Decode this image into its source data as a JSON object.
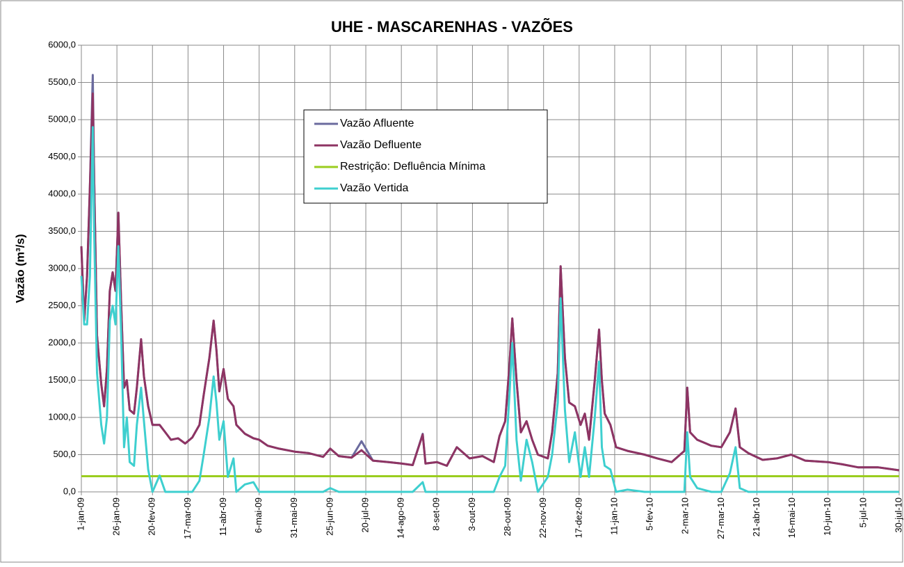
{
  "chart_data": {
    "type": "line",
    "title": "UHE - MASCARENHAS - VAZÕES",
    "y_label": "Vazão (m³/s)",
    "x": [
      "2009-01-01",
      "2009-01-03",
      "2009-01-05",
      "2009-01-07",
      "2009-01-09",
      "2009-01-10",
      "2009-01-12",
      "2009-01-15",
      "2009-01-17",
      "2009-01-19",
      "2009-01-21",
      "2009-01-23",
      "2009-01-25",
      "2009-01-27",
      "2009-01-29",
      "2009-01-31",
      "2009-02-02",
      "2009-02-04",
      "2009-02-07",
      "2009-02-09",
      "2009-02-12",
      "2009-02-14",
      "2009-02-17",
      "2009-02-20",
      "2009-02-25",
      "2009-03-01",
      "2009-03-05",
      "2009-03-10",
      "2009-03-15",
      "2009-03-20",
      "2009-03-25",
      "2009-03-28",
      "2009-04-01",
      "2009-04-04",
      "2009-04-06",
      "2009-04-08",
      "2009-04-11",
      "2009-04-14",
      "2009-04-18",
      "2009-04-20",
      "2009-04-26",
      "2009-05-02",
      "2009-05-06",
      "2009-05-12",
      "2009-05-20",
      "2009-05-31",
      "2009-06-10",
      "2009-06-20",
      "2009-06-25",
      "2009-07-01",
      "2009-07-10",
      "2009-07-17",
      "2009-07-25",
      "2009-08-05",
      "2009-08-14",
      "2009-08-22",
      "2009-08-29",
      "2009-08-31",
      "2009-09-08",
      "2009-09-15",
      "2009-09-22",
      "2009-10-01",
      "2009-10-10",
      "2009-10-18",
      "2009-10-22",
      "2009-10-26",
      "2009-10-29",
      "2009-10-31",
      "2009-11-03",
      "2009-11-06",
      "2009-11-10",
      "2009-11-14",
      "2009-11-18",
      "2009-11-25",
      "2009-11-28",
      "2009-12-02",
      "2009-12-04",
      "2009-12-07",
      "2009-12-10",
      "2009-12-14",
      "2009-12-18",
      "2009-12-21",
      "2009-12-24",
      "2009-12-28",
      "2009-12-31",
      "2010-01-02",
      "2010-01-04",
      "2010-01-08",
      "2010-01-12",
      "2010-01-20",
      "2010-02-01",
      "2010-02-10",
      "2010-02-20",
      "2010-03-01",
      "2010-03-03",
      "2010-03-05",
      "2010-03-10",
      "2010-03-20",
      "2010-03-27",
      "2010-04-02",
      "2010-04-06",
      "2010-04-09",
      "2010-04-15",
      "2010-04-25",
      "2010-05-05",
      "2010-05-15",
      "2010-05-25",
      "2010-06-10",
      "2010-06-20",
      "2010-07-01",
      "2010-07-15",
      "2010-07-30"
    ],
    "series": [
      {
        "name": "Vazão Afluente",
        "color": "#6b6b9e",
        "values": [
          3300,
          2300,
          2900,
          4100,
          5600,
          4200,
          2100,
          1450,
          1150,
          1650,
          2700,
          2950,
          2700,
          3750,
          2500,
          1400,
          1500,
          1100,
          1050,
          1400,
          2050,
          1550,
          1150,
          900,
          900,
          800,
          700,
          720,
          650,
          730,
          900,
          1300,
          1800,
          2300,
          1900,
          1350,
          1650,
          1250,
          1150,
          900,
          780,
          720,
          700,
          620,
          580,
          540,
          520,
          470,
          580,
          480,
          460,
          680,
          420,
          400,
          380,
          360,
          780,
          380,
          400,
          350,
          600,
          450,
          480,
          400,
          750,
          950,
          1700,
          2330,
          1500,
          800,
          950,
          700,
          500,
          450,
          800,
          1600,
          3030,
          1800,
          1200,
          1150,
          900,
          1050,
          700,
          1500,
          2180,
          1500,
          1050,
          900,
          600,
          550,
          500,
          450,
          400,
          550,
          1400,
          800,
          700,
          620,
          600,
          800,
          1120,
          600,
          520,
          430,
          450,
          500,
          420,
          400,
          370,
          330,
          330,
          290
        ]
      },
      {
        "name": "Vazão Defluente",
        "color": "#8e3463",
        "values": [
          3300,
          2300,
          2900,
          4100,
          5350,
          4200,
          2100,
          1450,
          1150,
          1650,
          2700,
          2950,
          2700,
          3750,
          2500,
          1400,
          1500,
          1100,
          1050,
          1400,
          2050,
          1550,
          1150,
          900,
          900,
          800,
          700,
          720,
          650,
          730,
          900,
          1300,
          1800,
          2300,
          1900,
          1350,
          1650,
          1250,
          1150,
          900,
          780,
          720,
          700,
          620,
          580,
          540,
          520,
          470,
          580,
          480,
          460,
          560,
          420,
          400,
          380,
          360,
          770,
          380,
          400,
          350,
          600,
          450,
          480,
          400,
          750,
          950,
          1700,
          2330,
          1500,
          800,
          950,
          700,
          500,
          450,
          800,
          1600,
          3030,
          1800,
          1200,
          1150,
          900,
          1050,
          700,
          1500,
          2180,
          1500,
          1050,
          900,
          600,
          550,
          500,
          450,
          400,
          550,
          1400,
          800,
          700,
          620,
          600,
          800,
          1120,
          600,
          520,
          430,
          450,
          500,
          420,
          400,
          370,
          330,
          330,
          290
        ]
      },
      {
        "name": "Restrição: Defluência Mínima",
        "color": "#9acd1e",
        "x": [
          "2009-01-01",
          "2010-07-30"
        ],
        "values": [
          210,
          210
        ]
      },
      {
        "name": "Vazão Vertida",
        "color": "#3ecfcf",
        "values": [
          2900,
          2250,
          2250,
          2900,
          4900,
          3500,
          1600,
          900,
          650,
          1000,
          2300,
          2500,
          2250,
          3300,
          2100,
          600,
          1000,
          400,
          350,
          900,
          1400,
          950,
          300,
          0,
          220,
          0,
          0,
          0,
          0,
          0,
          150,
          500,
          1000,
          1550,
          1200,
          700,
          950,
          200,
          450,
          0,
          100,
          130,
          0,
          0,
          0,
          0,
          0,
          0,
          50,
          0,
          0,
          0,
          0,
          0,
          0,
          0,
          130,
          0,
          0,
          0,
          0,
          0,
          0,
          0,
          200,
          350,
          1300,
          2000,
          700,
          150,
          700,
          400,
          0,
          200,
          500,
          1200,
          2600,
          1100,
          400,
          800,
          200,
          600,
          200,
          1000,
          1750,
          600,
          350,
          300,
          0,
          30,
          0,
          0,
          0,
          0,
          800,
          200,
          50,
          0,
          0,
          250,
          600,
          50,
          0,
          0,
          0,
          0,
          0,
          0,
          0,
          0,
          0,
          0
        ]
      }
    ],
    "ylim": [
      0,
      6000
    ],
    "yticks": [
      {
        "value": 0,
        "label": "0,0"
      },
      {
        "value": 500,
        "label": "500,0"
      },
      {
        "value": 1000,
        "label": "1000,0"
      },
      {
        "value": 1500,
        "label": "1500,0"
      },
      {
        "value": 2000,
        "label": "2000,0"
      },
      {
        "value": 2500,
        "label": "2500,0"
      },
      {
        "value": 3000,
        "label": "3000,0"
      },
      {
        "value": 3500,
        "label": "3500,0"
      },
      {
        "value": 4000,
        "label": "4000,0"
      },
      {
        "value": 4500,
        "label": "4500,0"
      },
      {
        "value": 5000,
        "label": "5000,0"
      },
      {
        "value": 5500,
        "label": "5500,0"
      },
      {
        "value": 6000,
        "label": "6000,0"
      }
    ],
    "xlim": [
      "2009-01-01",
      "2010-07-30"
    ],
    "xticks": [
      {
        "value": "2009-01-01",
        "label": "1-jan-09"
      },
      {
        "value": "2009-01-26",
        "label": "26-jan-09"
      },
      {
        "value": "2009-02-20",
        "label": "20-fev-09"
      },
      {
        "value": "2009-03-17",
        "label": "17-mar-09"
      },
      {
        "value": "2009-04-11",
        "label": "11-abr-09"
      },
      {
        "value": "2009-05-06",
        "label": "6-mai-09"
      },
      {
        "value": "2009-05-31",
        "label": "31-mai-09"
      },
      {
        "value": "2009-06-25",
        "label": "25-jun-09"
      },
      {
        "value": "2009-07-20",
        "label": "20-jul-09"
      },
      {
        "value": "2009-08-14",
        "label": "14-ago-09"
      },
      {
        "value": "2009-09-08",
        "label": "8-set-09"
      },
      {
        "value": "2009-10-03",
        "label": "3-out-09"
      },
      {
        "value": "2009-10-28",
        "label": "28-out-09"
      },
      {
        "value": "2009-11-22",
        "label": "22-nov-09"
      },
      {
        "value": "2009-12-17",
        "label": "17-dez-09"
      },
      {
        "value": "2010-01-11",
        "label": "11-jan-10"
      },
      {
        "value": "2010-02-05",
        "label": "5-fev-10"
      },
      {
        "value": "2010-03-02",
        "label": "2-mar-10"
      },
      {
        "value": "2010-03-27",
        "label": "27-mar-10"
      },
      {
        "value": "2010-04-21",
        "label": "21-abr-10"
      },
      {
        "value": "2010-05-16",
        "label": "16-mai-10"
      },
      {
        "value": "2010-06-10",
        "label": "10-jun-10"
      },
      {
        "value": "2010-07-05",
        "label": "5-jul-10"
      },
      {
        "value": "2010-07-30",
        "label": "30-jul-10"
      }
    ],
    "grid": true
  }
}
